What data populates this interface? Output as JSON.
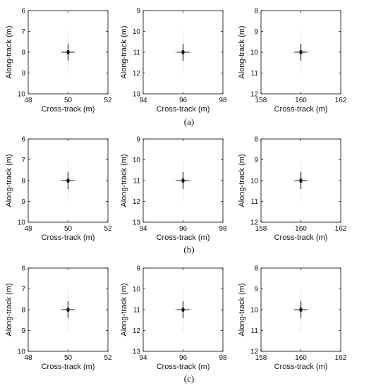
{
  "chart_data": [
    {
      "type": "scatter",
      "panel_group": "a",
      "xlabel": "Cross-track (m)",
      "ylabel": "Along-track (m)",
      "xlim": [
        48,
        52
      ],
      "ylim": [
        6,
        10
      ],
      "y_inverted": true,
      "xticks": [
        "48",
        "50",
        "52"
      ],
      "yticks": [
        "6",
        "7",
        "8",
        "9",
        "10"
      ],
      "point_target": {
        "x": 50,
        "y": 8
      },
      "grid": false
    },
    {
      "type": "scatter",
      "panel_group": "a",
      "xlabel": "Cross-track (m)",
      "ylabel": "Along-track (m)",
      "xlim": [
        94,
        98
      ],
      "ylim": [
        9,
        13
      ],
      "y_inverted": true,
      "xticks": [
        "94",
        "96",
        "98"
      ],
      "yticks": [
        "9",
        "10",
        "11",
        "12",
        "13"
      ],
      "point_target": {
        "x": 96,
        "y": 11
      },
      "grid": false
    },
    {
      "type": "scatter",
      "panel_group": "a",
      "xlabel": "Cross-track (m)",
      "ylabel": "Along-track (m)",
      "xlim": [
        158,
        162
      ],
      "ylim": [
        8,
        12
      ],
      "y_inverted": true,
      "xticks": [
        "158",
        "160",
        "162"
      ],
      "yticks": [
        "8",
        "9",
        "10",
        "11",
        "12"
      ],
      "point_target": {
        "x": 160,
        "y": 10
      },
      "grid": false
    },
    {
      "type": "scatter",
      "panel_group": "b",
      "xlabel": "Cross-track (m)",
      "ylabel": "Along-track (m)",
      "xlim": [
        48,
        52
      ],
      "ylim": [
        6,
        10
      ],
      "y_inverted": true,
      "xticks": [
        "48",
        "50",
        "52"
      ],
      "yticks": [
        "6",
        "7",
        "8",
        "9",
        "10"
      ],
      "point_target": {
        "x": 50,
        "y": 8
      },
      "grid": false
    },
    {
      "type": "scatter",
      "panel_group": "b",
      "xlabel": "Cross-track (m)",
      "ylabel": "Along-track (m)",
      "xlim": [
        94,
        98
      ],
      "ylim": [
        9,
        13
      ],
      "y_inverted": true,
      "xticks": [
        "94",
        "96",
        "98"
      ],
      "yticks": [
        "9",
        "10",
        "11",
        "12",
        "13"
      ],
      "point_target": {
        "x": 96,
        "y": 11
      },
      "grid": false
    },
    {
      "type": "scatter",
      "panel_group": "b",
      "xlabel": "Cross-track (m)",
      "ylabel": "Along-track (m)",
      "xlim": [
        158,
        162
      ],
      "ylim": [
        8,
        12
      ],
      "y_inverted": true,
      "xticks": [
        "158",
        "160",
        "162"
      ],
      "yticks": [
        "8",
        "9",
        "10",
        "11",
        "12"
      ],
      "point_target": {
        "x": 160,
        "y": 10
      },
      "grid": false
    },
    {
      "type": "scatter",
      "panel_group": "c",
      "xlabel": "Cross-track (m)",
      "ylabel": "Along-track (m)",
      "xlim": [
        48,
        52
      ],
      "ylim": [
        6,
        10
      ],
      "y_inverted": true,
      "xticks": [
        "48",
        "50",
        "52"
      ],
      "yticks": [
        "6",
        "7",
        "8",
        "9",
        "10"
      ],
      "point_target": {
        "x": 50,
        "y": 8
      },
      "grid": false
    },
    {
      "type": "scatter",
      "panel_group": "c",
      "xlabel": "Cross-track (m)",
      "ylabel": "Along-track (m)",
      "xlim": [
        94,
        98
      ],
      "ylim": [
        9,
        13
      ],
      "y_inverted": true,
      "xticks": [
        "94",
        "96",
        "98"
      ],
      "yticks": [
        "9",
        "10",
        "11",
        "12",
        "13"
      ],
      "point_target": {
        "x": 96,
        "y": 11
      },
      "grid": false
    },
    {
      "type": "scatter",
      "panel_group": "c",
      "xlabel": "Cross-track (m)",
      "ylabel": "Along-track (m)",
      "xlim": [
        158,
        162
      ],
      "ylim": [
        8,
        12
      ],
      "y_inverted": true,
      "xticks": [
        "158",
        "160",
        "162"
      ],
      "yticks": [
        "8",
        "9",
        "10",
        "11",
        "12"
      ],
      "point_target": {
        "x": 160,
        "y": 10
      },
      "grid": false
    }
  ],
  "captions": [
    "(a)",
    "(b)",
    "(c)"
  ],
  "colors": {
    "axis": "#000000",
    "target": "#1a1a1a",
    "background": "#ffffff"
  }
}
